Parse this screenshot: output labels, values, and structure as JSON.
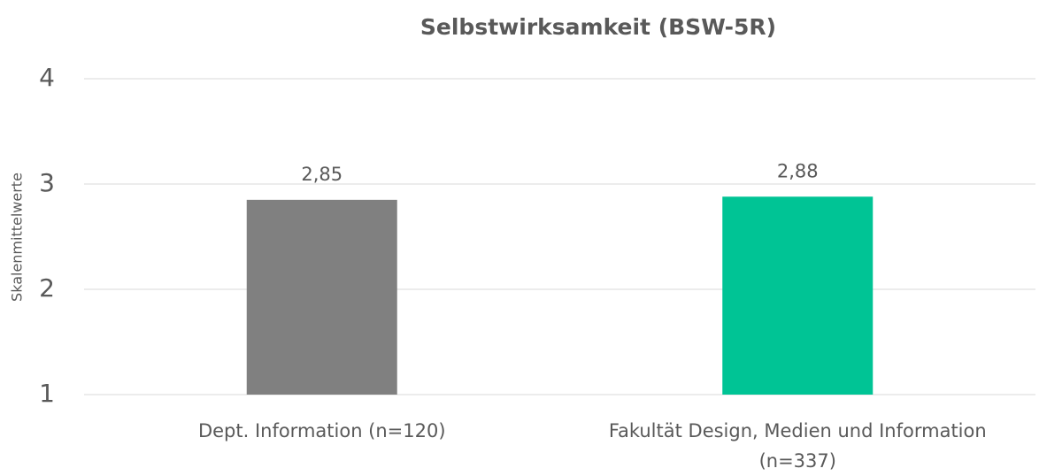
{
  "chart_data": {
    "type": "bar",
    "title": "Selbstwirksamkeit (BSW-5R)",
    "y_label": "Skalenmittelwerte",
    "categories": [
      "Dept. Information (n=120)",
      "Fakultät Design, Medien und Information (n=337)"
    ],
    "values": [
      2.85,
      2.88
    ],
    "value_labels": [
      "2,85",
      "2,88"
    ],
    "colors": [
      "#808080",
      "#00c495"
    ],
    "ylim": [
      1,
      4
    ],
    "yticks": [
      1,
      2,
      3,
      4
    ],
    "grid": true
  }
}
